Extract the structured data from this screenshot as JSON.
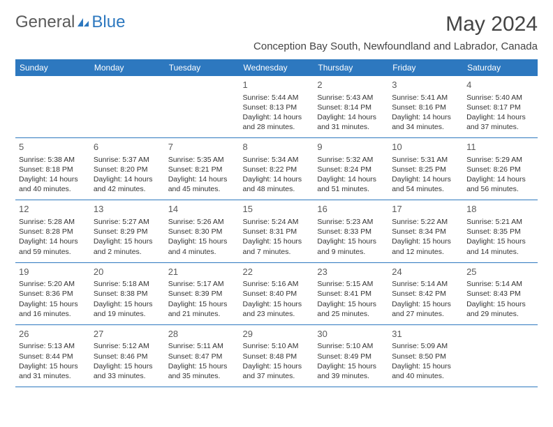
{
  "logo": {
    "text1": "General",
    "text2": "Blue"
  },
  "header": {
    "title": "May 2024",
    "location": "Conception Bay South, Newfoundland and Labrador, Canada"
  },
  "calendar": {
    "colors": {
      "header_bg": "#2d78bf",
      "header_text": "#ffffff",
      "cell_border": "#2d78bf",
      "text": "#333333",
      "daynum": "#5a5a5a"
    },
    "daynames": [
      "Sunday",
      "Monday",
      "Tuesday",
      "Wednesday",
      "Thursday",
      "Friday",
      "Saturday"
    ],
    "weeks": [
      [
        null,
        null,
        null,
        {
          "day": "1",
          "sunrise": "5:44 AM",
          "sunset": "8:13 PM",
          "daylight": "14 hours and 28 minutes."
        },
        {
          "day": "2",
          "sunrise": "5:43 AM",
          "sunset": "8:14 PM",
          "daylight": "14 hours and 31 minutes."
        },
        {
          "day": "3",
          "sunrise": "5:41 AM",
          "sunset": "8:16 PM",
          "daylight": "14 hours and 34 minutes."
        },
        {
          "day": "4",
          "sunrise": "5:40 AM",
          "sunset": "8:17 PM",
          "daylight": "14 hours and 37 minutes."
        }
      ],
      [
        {
          "day": "5",
          "sunrise": "5:38 AM",
          "sunset": "8:18 PM",
          "daylight": "14 hours and 40 minutes."
        },
        {
          "day": "6",
          "sunrise": "5:37 AM",
          "sunset": "8:20 PM",
          "daylight": "14 hours and 42 minutes."
        },
        {
          "day": "7",
          "sunrise": "5:35 AM",
          "sunset": "8:21 PM",
          "daylight": "14 hours and 45 minutes."
        },
        {
          "day": "8",
          "sunrise": "5:34 AM",
          "sunset": "8:22 PM",
          "daylight": "14 hours and 48 minutes."
        },
        {
          "day": "9",
          "sunrise": "5:32 AM",
          "sunset": "8:24 PM",
          "daylight": "14 hours and 51 minutes."
        },
        {
          "day": "10",
          "sunrise": "5:31 AM",
          "sunset": "8:25 PM",
          "daylight": "14 hours and 54 minutes."
        },
        {
          "day": "11",
          "sunrise": "5:29 AM",
          "sunset": "8:26 PM",
          "daylight": "14 hours and 56 minutes."
        }
      ],
      [
        {
          "day": "12",
          "sunrise": "5:28 AM",
          "sunset": "8:28 PM",
          "daylight": "14 hours and 59 minutes."
        },
        {
          "day": "13",
          "sunrise": "5:27 AM",
          "sunset": "8:29 PM",
          "daylight": "15 hours and 2 minutes."
        },
        {
          "day": "14",
          "sunrise": "5:26 AM",
          "sunset": "8:30 PM",
          "daylight": "15 hours and 4 minutes."
        },
        {
          "day": "15",
          "sunrise": "5:24 AM",
          "sunset": "8:31 PM",
          "daylight": "15 hours and 7 minutes."
        },
        {
          "day": "16",
          "sunrise": "5:23 AM",
          "sunset": "8:33 PM",
          "daylight": "15 hours and 9 minutes."
        },
        {
          "day": "17",
          "sunrise": "5:22 AM",
          "sunset": "8:34 PM",
          "daylight": "15 hours and 12 minutes."
        },
        {
          "day": "18",
          "sunrise": "5:21 AM",
          "sunset": "8:35 PM",
          "daylight": "15 hours and 14 minutes."
        }
      ],
      [
        {
          "day": "19",
          "sunrise": "5:20 AM",
          "sunset": "8:36 PM",
          "daylight": "15 hours and 16 minutes."
        },
        {
          "day": "20",
          "sunrise": "5:18 AM",
          "sunset": "8:38 PM",
          "daylight": "15 hours and 19 minutes."
        },
        {
          "day": "21",
          "sunrise": "5:17 AM",
          "sunset": "8:39 PM",
          "daylight": "15 hours and 21 minutes."
        },
        {
          "day": "22",
          "sunrise": "5:16 AM",
          "sunset": "8:40 PM",
          "daylight": "15 hours and 23 minutes."
        },
        {
          "day": "23",
          "sunrise": "5:15 AM",
          "sunset": "8:41 PM",
          "daylight": "15 hours and 25 minutes."
        },
        {
          "day": "24",
          "sunrise": "5:14 AM",
          "sunset": "8:42 PM",
          "daylight": "15 hours and 27 minutes."
        },
        {
          "day": "25",
          "sunrise": "5:14 AM",
          "sunset": "8:43 PM",
          "daylight": "15 hours and 29 minutes."
        }
      ],
      [
        {
          "day": "26",
          "sunrise": "5:13 AM",
          "sunset": "8:44 PM",
          "daylight": "15 hours and 31 minutes."
        },
        {
          "day": "27",
          "sunrise": "5:12 AM",
          "sunset": "8:46 PM",
          "daylight": "15 hours and 33 minutes."
        },
        {
          "day": "28",
          "sunrise": "5:11 AM",
          "sunset": "8:47 PM",
          "daylight": "15 hours and 35 minutes."
        },
        {
          "day": "29",
          "sunrise": "5:10 AM",
          "sunset": "8:48 PM",
          "daylight": "15 hours and 37 minutes."
        },
        {
          "day": "30",
          "sunrise": "5:10 AM",
          "sunset": "8:49 PM",
          "daylight": "15 hours and 39 minutes."
        },
        {
          "day": "31",
          "sunrise": "5:09 AM",
          "sunset": "8:50 PM",
          "daylight": "15 hours and 40 minutes."
        },
        null
      ]
    ],
    "labels": {
      "sunrise": "Sunrise:",
      "sunset": "Sunset:",
      "daylight": "Daylight:"
    }
  }
}
